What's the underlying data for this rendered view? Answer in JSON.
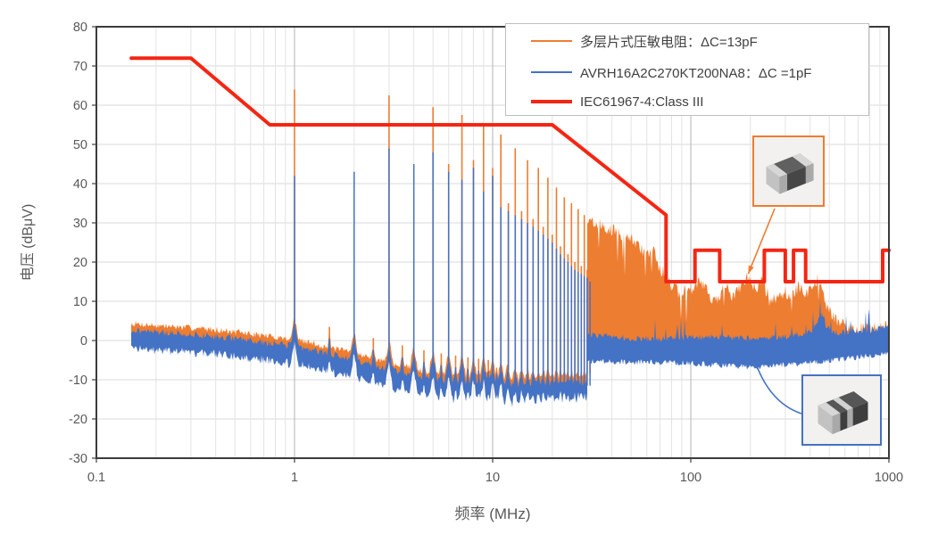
{
  "legend": {
    "entries": [
      {
        "label": "多层片式压敏电阻：ΔC=13pF",
        "color": "#ed7d31",
        "thick": false
      },
      {
        "label": "AVRH16A2C270KT200NA8：ΔC =1pF",
        "color": "#4472c4",
        "thick": false
      },
      {
        "label": "IEC61967-4:Class III",
        "color": "#f42613",
        "thick": true
      }
    ]
  },
  "chart_data": {
    "type": "line",
    "title": "",
    "xlabel": "频率 (MHz)",
    "ylabel": "电压 (dBμV)",
    "x_scale": "log",
    "xlim": [
      0.1,
      1000
    ],
    "x_ticks": [
      0.1,
      1,
      10,
      100,
      1000
    ],
    "ylim": [
      -30,
      80
    ],
    "y_tick_step": 10,
    "grid": {
      "horizontal_step": 10,
      "x_minor_log": true
    },
    "legend_position": "top-center",
    "series": [
      {
        "name": "多层片式压敏电阻：ΔC=13pF",
        "color": "#ed7d31",
        "kind": "emission-spectrum",
        "trace_start_MHz": 0.15,
        "harmonic_spacing_MHz": 1,
        "noise_floor_dB": [
          [
            0.15,
            2.5
          ],
          [
            0.4,
            1
          ],
          [
            1,
            -1.5
          ],
          [
            2,
            -5
          ],
          [
            3,
            -7.5
          ],
          [
            5,
            -10
          ],
          [
            8,
            -11.5
          ],
          [
            12,
            -12.5
          ],
          [
            20,
            -13
          ],
          [
            30,
            -13.5
          ]
        ],
        "odd_harmonic_peaks_dB": [
          [
            1,
            64
          ],
          [
            3,
            62.5
          ],
          [
            5,
            59.5
          ],
          [
            7,
            57.5
          ],
          [
            9,
            55
          ],
          [
            11,
            52.5
          ],
          [
            13,
            49
          ],
          [
            15,
            46
          ],
          [
            17,
            44
          ],
          [
            19,
            41.5
          ],
          [
            21,
            39
          ],
          [
            23,
            36.5
          ],
          [
            25,
            35
          ],
          [
            27,
            33.5
          ],
          [
            29,
            32
          ],
          [
            31,
            31
          ]
        ],
        "broadband_envelope_dB": [
          [
            30,
            32
          ],
          [
            34,
            30.5
          ],
          [
            40,
            29
          ],
          [
            46,
            27
          ],
          [
            52,
            26
          ],
          [
            58,
            23
          ],
          [
            64,
            24
          ],
          [
            70,
            19
          ],
          [
            76,
            17
          ],
          [
            82,
            14
          ],
          [
            88,
            13
          ],
          [
            95,
            14
          ],
          [
            100,
            13
          ],
          [
            110,
            16
          ],
          [
            120,
            14
          ],
          [
            130,
            11
          ],
          [
            140,
            12
          ],
          [
            150,
            15
          ],
          [
            160,
            12
          ],
          [
            175,
            14
          ],
          [
            190,
            17
          ],
          [
            210,
            14
          ],
          [
            230,
            16
          ],
          [
            250,
            11
          ],
          [
            270,
            12
          ],
          [
            300,
            13
          ],
          [
            330,
            12
          ],
          [
            350,
            15
          ],
          [
            380,
            13
          ],
          [
            410,
            14
          ],
          [
            440,
            17
          ],
          [
            460,
            13
          ],
          [
            480,
            10
          ],
          [
            500,
            8
          ],
          [
            540,
            6
          ],
          [
            600,
            4.5
          ],
          [
            700,
            4
          ],
          [
            800,
            4
          ],
          [
            900,
            4
          ],
          [
            1000,
            4.5
          ]
        ],
        "broadband_base_dB": [
          [
            30,
            -3
          ],
          [
            300,
            -2.5
          ],
          [
            500,
            -2
          ],
          [
            700,
            -0.5
          ],
          [
            1000,
            0.5
          ]
        ]
      },
      {
        "name": "AVRH16A2C270KT200NA8：ΔC =1pF",
        "color": "#4472c4",
        "kind": "emission-spectrum",
        "trace_start_MHz": 0.15,
        "harmonic_spacing_MHz": 1,
        "noise_floor_dB": [
          [
            0.15,
            0.5
          ],
          [
            0.4,
            -1
          ],
          [
            1,
            -3.5
          ],
          [
            2,
            -7
          ],
          [
            3,
            -9.5
          ],
          [
            5,
            -12
          ],
          [
            8,
            -13.5
          ],
          [
            12,
            -14.5
          ],
          [
            20,
            -15
          ],
          [
            30,
            -15.5
          ]
        ],
        "harmonic_peaks_dB": [
          [
            1,
            42
          ],
          [
            2,
            43
          ],
          [
            3,
            49
          ],
          [
            4,
            45
          ],
          [
            5,
            48
          ],
          [
            6,
            43
          ],
          [
            7,
            41
          ],
          [
            8,
            44
          ],
          [
            9,
            38
          ],
          [
            10,
            42
          ],
          [
            11,
            34
          ],
          [
            12,
            33
          ],
          [
            14,
            31
          ],
          [
            16,
            29
          ],
          [
            18,
            27
          ],
          [
            20,
            25
          ],
          [
            22,
            22
          ],
          [
            24,
            20
          ],
          [
            26,
            18
          ],
          [
            28,
            17
          ],
          [
            30,
            16
          ],
          [
            31,
            15
          ]
        ],
        "broadband_top_dB": [
          [
            30,
            1.5
          ],
          [
            50,
            0.5
          ],
          [
            80,
            0.5
          ],
          [
            120,
            1
          ],
          [
            200,
            0.5
          ],
          [
            300,
            1
          ],
          [
            400,
            2
          ],
          [
            440,
            5
          ],
          [
            460,
            7
          ],
          [
            480,
            4
          ],
          [
            520,
            2
          ],
          [
            600,
            2
          ],
          [
            750,
            2.5
          ],
          [
            900,
            3
          ],
          [
            1000,
            4
          ]
        ],
        "broadband_bottom_dB": [
          [
            30,
            -4.5
          ],
          [
            100,
            -5
          ],
          [
            200,
            -6
          ],
          [
            400,
            -5
          ],
          [
            700,
            -3.5
          ],
          [
            1000,
            -2.5
          ]
        ]
      },
      {
        "name": "IEC61967-4:Class III",
        "color": "#f42613",
        "kind": "limit-line",
        "points": [
          [
            0.15,
            72
          ],
          [
            0.3,
            72
          ],
          [
            0.75,
            55
          ],
          [
            20,
            55
          ],
          [
            75,
            32
          ],
          [
            75,
            15
          ],
          [
            105,
            15
          ],
          [
            105,
            23
          ],
          [
            140,
            23
          ],
          [
            140,
            15
          ],
          [
            235,
            15
          ],
          [
            235,
            23
          ],
          [
            300,
            23
          ],
          [
            300,
            15
          ],
          [
            330,
            15
          ],
          [
            330,
            23
          ],
          [
            380,
            23
          ],
          [
            380,
            15
          ],
          [
            930,
            15
          ],
          [
            930,
            23
          ],
          [
            1000,
            23
          ]
        ]
      }
    ],
    "annotations": [
      {
        "name": "varistor-callout",
        "points_to_series": "多层片式压敏电阻：ΔC=13pF",
        "arrow_target": {
          "MHz": 195,
          "dB": 17
        }
      },
      {
        "name": "avrh-callout",
        "points_to_series": "AVRH16A2C270KT200NA8：ΔC =1pF",
        "arrow_target": {
          "MHz": 210,
          "dB": -5
        }
      }
    ]
  }
}
